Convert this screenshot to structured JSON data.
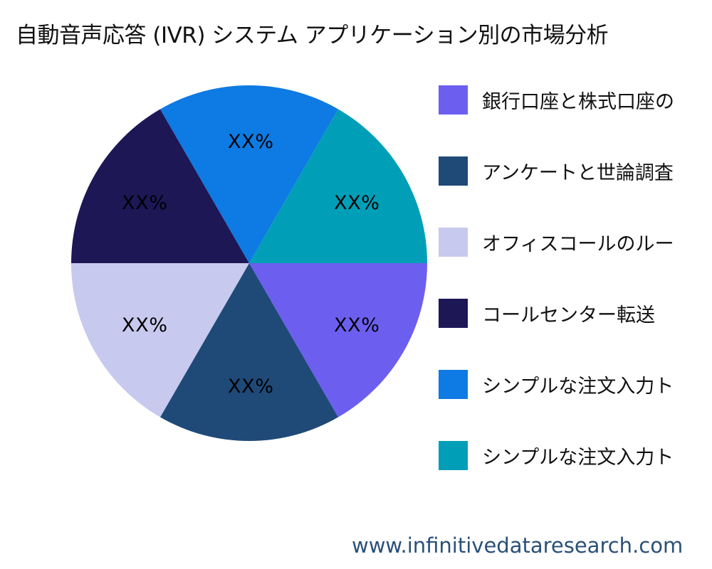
{
  "chart_data": {
    "type": "pie",
    "title": "自動音声応答 (IVR) システム アプリケーション別の市場分析",
    "slices": [
      {
        "label": "銀行口座と株式口座の",
        "value": 16.67,
        "display": "XX%",
        "color": "#6c5ff0"
      },
      {
        "label": "アンケートと世論調査",
        "value": 16.67,
        "display": "XX%",
        "color": "#1f4a78"
      },
      {
        "label": "オフィスコールのルー",
        "value": 16.67,
        "display": "XX%",
        "color": "#c8c9ef"
      },
      {
        "label": "コールセンター転送",
        "value": 16.67,
        "display": "XX%",
        "color": "#1d1756"
      },
      {
        "label": "シンプルな注文入力ト",
        "value": 16.67,
        "display": "XX%",
        "color": "#0e7ae3"
      },
      {
        "label": "シンプルな注文入力ト",
        "value": 16.67,
        "display": "XX%",
        "color": "#009fb7"
      }
    ],
    "legend_position": "right"
  },
  "watermark": "www.infinitivedataresearch.com"
}
